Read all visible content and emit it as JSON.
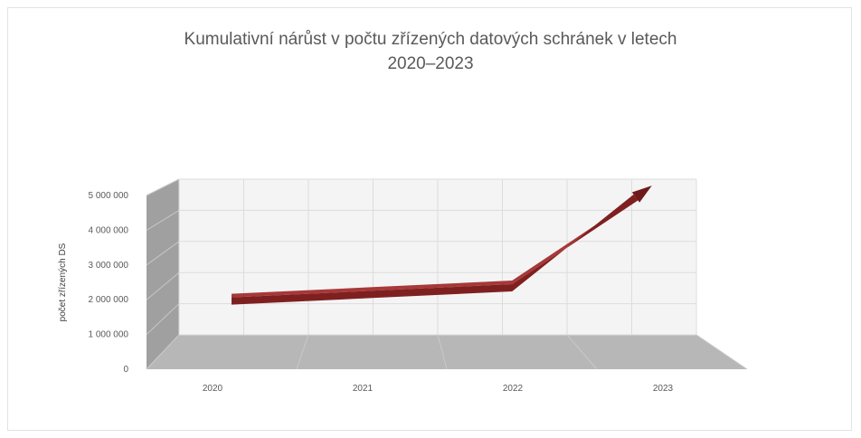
{
  "chart_data": {
    "type": "line",
    "title_line1": "Kumulativní nárůst v počtu zřízených datových schránek v letech",
    "title_line2": "2020–2023",
    "ylabel": "počet zřízených DS",
    "xlabel": "",
    "categories": [
      "2020",
      "2021",
      "2022",
      "2023"
    ],
    "y_ticks": [
      "0",
      "1 000 000",
      "2 000 000",
      "3 000 000",
      "4 000 000",
      "5 000 000"
    ],
    "ylim": [
      0,
      5000000
    ],
    "series": [
      {
        "values": [
          1550000,
          1750000,
          1950000,
          5050000
        ],
        "color": "#7f2020"
      }
    ],
    "style": "3d-line",
    "grid": true,
    "legend": "none"
  }
}
